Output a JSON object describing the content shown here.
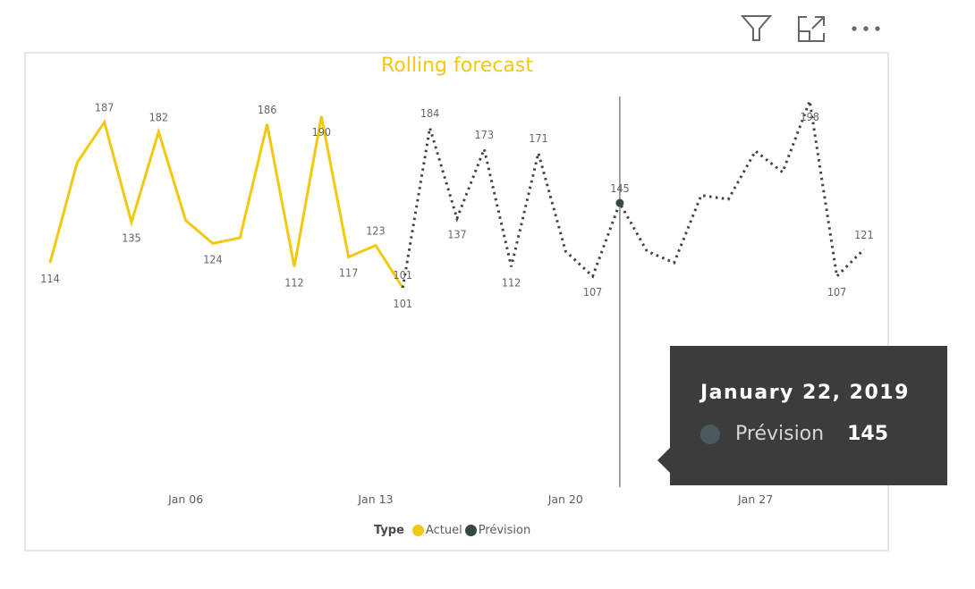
{
  "header": {
    "icons": [
      {
        "name": "filter-icon",
        "label": "Filters"
      },
      {
        "name": "focus-mode-icon",
        "label": "Focus mode"
      },
      {
        "name": "more-options-icon",
        "label": "More options"
      }
    ]
  },
  "colors": {
    "actuel": "#F2C811",
    "prevision": "#374649",
    "title": "#F2C811",
    "tooltip_bg": "#3C3C3C",
    "hover_line": "#666666"
  },
  "chart_data": {
    "type": "line",
    "title": "Rolling forecast",
    "xlabel": "",
    "ylabel": "",
    "x": [
      "2019-01-01",
      "2019-01-02",
      "2019-01-03",
      "2019-01-04",
      "2019-01-05",
      "2019-01-06",
      "2019-01-07",
      "2019-01-08",
      "2019-01-09",
      "2019-01-10",
      "2019-01-11",
      "2019-01-12",
      "2019-01-13",
      "2019-01-14",
      "2019-01-15",
      "2019-01-16",
      "2019-01-17",
      "2019-01-18",
      "2019-01-19",
      "2019-01-20",
      "2019-01-21",
      "2019-01-22",
      "2019-01-23",
      "2019-01-24",
      "2019-01-25",
      "2019-01-26",
      "2019-01-27",
      "2019-01-28",
      "2019-01-29",
      "2019-01-30",
      "2019-01-31"
    ],
    "x_tick_labels": [
      "Jan 06",
      "Jan 13",
      "Jan 20",
      "Jan 27"
    ],
    "x_tick_dates": [
      "2019-01-06",
      "2019-01-13",
      "2019-01-20",
      "2019-01-27"
    ],
    "series": [
      {
        "name": "Actuel",
        "color": "#F2C811",
        "style": "solid",
        "values": [
          114,
          166,
          187,
          135,
          182,
          136,
          124,
          127,
          186,
          112,
          190,
          117,
          123,
          101,
          null,
          null,
          null,
          null,
          null,
          null,
          null,
          null,
          null,
          null,
          null,
          null,
          null,
          null,
          null,
          null,
          null
        ]
      },
      {
        "name": "Prévision",
        "color": "#374649",
        "style": "dotted",
        "values": [
          null,
          null,
          null,
          null,
          null,
          null,
          null,
          null,
          null,
          null,
          null,
          null,
          null,
          101,
          184,
          137,
          173,
          112,
          171,
          120,
          107,
          145,
          120,
          114,
          149,
          147,
          172,
          161,
          198,
          107,
          121
        ]
      }
    ],
    "data_labels": [
      {
        "series": "Actuel",
        "index": 0,
        "text": "114",
        "pos": "below"
      },
      {
        "series": "Actuel",
        "index": 2,
        "text": "187",
        "pos": "above"
      },
      {
        "series": "Actuel",
        "index": 3,
        "text": "135",
        "pos": "below"
      },
      {
        "series": "Actuel",
        "index": 4,
        "text": "182",
        "pos": "above"
      },
      {
        "series": "Actuel",
        "index": 6,
        "text": "124",
        "pos": "below"
      },
      {
        "series": "Actuel",
        "index": 8,
        "text": "186",
        "pos": "above"
      },
      {
        "series": "Actuel",
        "index": 9,
        "text": "112",
        "pos": "below"
      },
      {
        "series": "Actuel",
        "index": 10,
        "text": "190",
        "pos": "inside"
      },
      {
        "series": "Actuel",
        "index": 11,
        "text": "117",
        "pos": "below"
      },
      {
        "series": "Actuel",
        "index": 12,
        "text": "123",
        "pos": "above"
      },
      {
        "series": "Actuel",
        "index": 13,
        "text": "101",
        "pos": "below"
      },
      {
        "series": "Prévision",
        "index": 13,
        "text": "101",
        "pos": "above"
      },
      {
        "series": "Prévision",
        "index": 14,
        "text": "184",
        "pos": "above"
      },
      {
        "series": "Prévision",
        "index": 15,
        "text": "137",
        "pos": "below"
      },
      {
        "series": "Prévision",
        "index": 16,
        "text": "173",
        "pos": "above"
      },
      {
        "series": "Prévision",
        "index": 17,
        "text": "112",
        "pos": "below"
      },
      {
        "series": "Prévision",
        "index": 18,
        "text": "171",
        "pos": "above"
      },
      {
        "series": "Prévision",
        "index": 20,
        "text": "107",
        "pos": "below"
      },
      {
        "series": "Prévision",
        "index": 21,
        "text": "145",
        "pos": "above"
      },
      {
        "series": "Prévision",
        "index": 28,
        "text": "198",
        "pos": "inside"
      },
      {
        "series": "Prévision",
        "index": 29,
        "text": "107",
        "pos": "below"
      },
      {
        "series": "Prévision",
        "index": 30,
        "text": "121",
        "pos": "above"
      }
    ],
    "ylim": [
      101,
      198
    ],
    "grid": false,
    "y_axis_visible": false,
    "legend": {
      "title": "Type",
      "position": "bottom-center",
      "entries": [
        "Actuel",
        "Prévision"
      ]
    },
    "highlighted_index": 21
  },
  "legend": {
    "title": "Type",
    "items": [
      {
        "label": "Actuel",
        "color": "#F2C811"
      },
      {
        "label": "Prévision",
        "color": "#374649"
      }
    ]
  },
  "tooltip": {
    "title": "January 22, 2019",
    "series": "Prévision",
    "value": "145",
    "dot_color": "#4B5A5E"
  }
}
